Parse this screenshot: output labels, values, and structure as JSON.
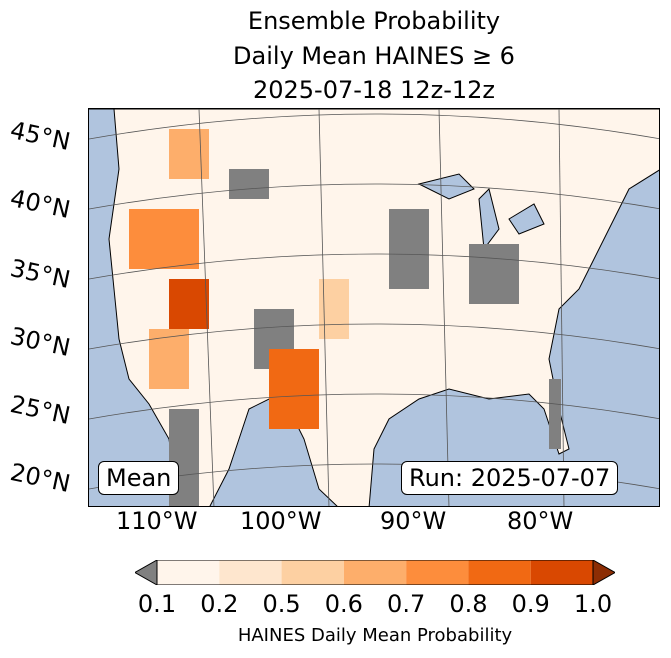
{
  "title": {
    "line1": "Ensemble Probability",
    "line2": "Daily Mean HAINES ≥ 6",
    "line3": "2025-07-18 12z-12z"
  },
  "map": {
    "lat_labels": [
      "45°N",
      "40°N",
      "35°N",
      "30°N",
      "25°N",
      "20°N"
    ],
    "lon_labels": [
      "110°W",
      "100°W",
      "90°W",
      "80°W"
    ],
    "mean_label": "Mean",
    "run_label": "Run: 2025-07-07",
    "colors": {
      "ocean": "#b0c4de",
      "land": "#fff",
      "below": "#808080"
    }
  },
  "colorbar": {
    "ticks": [
      "0.1",
      "0.2",
      "0.5",
      "0.6",
      "0.7",
      "0.8",
      "0.9",
      "1.0"
    ],
    "label": "HAINES Daily Mean Probability",
    "colors": [
      "#fff5eb",
      "#fee6ce",
      "#fdd0a2",
      "#fdae6b",
      "#fd8d3c",
      "#f16913",
      "#d94801",
      "#8c2d04"
    ],
    "under_color": "#808080"
  }
}
